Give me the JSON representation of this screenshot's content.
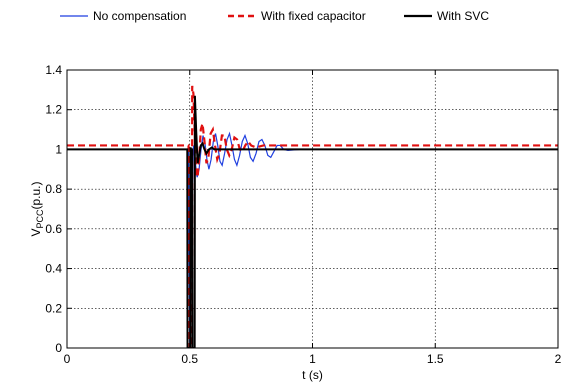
{
  "chart_data": {
    "type": "line",
    "title": "",
    "xlabel": "t (s)",
    "ylabel_main": "V",
    "ylabel_sub": "PCC",
    "ylabel_unit": "(p.u.)",
    "xlim": [
      0,
      2
    ],
    "ylim": [
      0,
      1.4
    ],
    "xticks": [
      0,
      0.5,
      1,
      1.5,
      2
    ],
    "xtick_labels": [
      "0",
      "0.5",
      "1",
      "1.5",
      "2"
    ],
    "yticks": [
      0,
      0.2,
      0.4,
      0.6,
      0.8,
      1,
      1.2,
      1.4
    ],
    "ytick_labels": [
      "0",
      "0.2",
      "0.4",
      "0.6",
      "0.8",
      "1",
      "1.2",
      "1.4"
    ],
    "grid": true,
    "legend_position": "top",
    "series": [
      {
        "name": "No compensation",
        "color": "#1f3fe0",
        "style": "solid",
        "points": [
          [
            0,
            1.0
          ],
          [
            0.495,
            1.0
          ],
          [
            0.5,
            0
          ],
          [
            0.51,
            0
          ],
          [
            0.511,
            0.82
          ],
          [
            0.515,
            1.02
          ],
          [
            0.522,
            0.94
          ],
          [
            0.53,
            0.86
          ],
          [
            0.538,
            0.9
          ],
          [
            0.546,
            1.0
          ],
          [
            0.554,
            1.07
          ],
          [
            0.562,
            1.03
          ],
          [
            0.57,
            0.95
          ],
          [
            0.578,
            0.9
          ],
          [
            0.587,
            0.95
          ],
          [
            0.596,
            1.04
          ],
          [
            0.605,
            1.08
          ],
          [
            0.614,
            1.02
          ],
          [
            0.623,
            0.94
          ],
          [
            0.632,
            0.92
          ],
          [
            0.642,
            0.98
          ],
          [
            0.652,
            1.05
          ],
          [
            0.662,
            1.08
          ],
          [
            0.672,
            1.02
          ],
          [
            0.682,
            0.95
          ],
          [
            0.692,
            0.92
          ],
          [
            0.703,
            0.97
          ],
          [
            0.714,
            1.04
          ],
          [
            0.725,
            1.07
          ],
          [
            0.736,
            1.03
          ],
          [
            0.747,
            0.96
          ],
          [
            0.758,
            0.94
          ],
          [
            0.77,
            0.98
          ],
          [
            0.782,
            1.04
          ],
          [
            0.794,
            1.05
          ],
          [
            0.806,
            1.02
          ],
          [
            0.818,
            0.97
          ],
          [
            0.83,
            0.96
          ],
          [
            0.843,
            0.99
          ],
          [
            0.856,
            1.02
          ],
          [
            0.869,
            1.02
          ],
          [
            0.882,
            1.0
          ],
          [
            0.9,
            0.995
          ],
          [
            0.95,
            1.0
          ],
          [
            2.0,
            1.0
          ]
        ]
      },
      {
        "name": "With fixed capacitor",
        "color": "#e01010",
        "style": "dashed",
        "points": [
          [
            0,
            1.02
          ],
          [
            0.495,
            1.02
          ],
          [
            0.5,
            0
          ],
          [
            0.509,
            0
          ],
          [
            0.51,
            1.32
          ],
          [
            0.515,
            1.28
          ],
          [
            0.52,
            1.1
          ],
          [
            0.526,
            0.88
          ],
          [
            0.532,
            0.86
          ],
          [
            0.538,
            0.95
          ],
          [
            0.545,
            1.1
          ],
          [
            0.552,
            1.13
          ],
          [
            0.56,
            1.04
          ],
          [
            0.568,
            0.93
          ],
          [
            0.576,
            0.96
          ],
          [
            0.585,
            1.08
          ],
          [
            0.594,
            1.1
          ],
          [
            0.603,
            1.02
          ],
          [
            0.612,
            0.95
          ],
          [
            0.621,
            0.98
          ],
          [
            0.631,
            1.07
          ],
          [
            0.641,
            1.07
          ],
          [
            0.651,
            1.0
          ],
          [
            0.661,
            0.97
          ],
          [
            0.671,
            1.0
          ],
          [
            0.682,
            1.06
          ],
          [
            0.693,
            1.05
          ],
          [
            0.704,
            1.0
          ],
          [
            0.715,
            0.99
          ],
          [
            0.726,
            1.02
          ],
          [
            0.738,
            1.04
          ],
          [
            0.75,
            1.02
          ],
          [
            0.77,
            1.01
          ],
          [
            0.8,
            1.02
          ],
          [
            2.0,
            1.02
          ]
        ]
      },
      {
        "name": "With SVC",
        "color": "#000000",
        "style": "solid",
        "points": [
          [
            0,
            1.0
          ],
          [
            0.49,
            1.0
          ],
          [
            0.491,
            0
          ],
          [
            0.502,
            0
          ],
          [
            0.503,
            1.01
          ],
          [
            0.506,
            1.0
          ],
          [
            0.51,
            1.0
          ],
          [
            0.511,
            0
          ],
          [
            0.52,
            0
          ],
          [
            0.521,
            1.27
          ],
          [
            0.526,
            1.1
          ],
          [
            0.532,
            0.93
          ],
          [
            0.538,
            0.97
          ],
          [
            0.545,
            1.02
          ],
          [
            0.552,
            1.03
          ],
          [
            0.56,
            1.0
          ],
          [
            0.568,
            0.98
          ],
          [
            0.578,
            1.0
          ],
          [
            0.59,
            1.01
          ],
          [
            0.6,
            1.0
          ],
          [
            2.0,
            1.0
          ]
        ]
      }
    ]
  }
}
